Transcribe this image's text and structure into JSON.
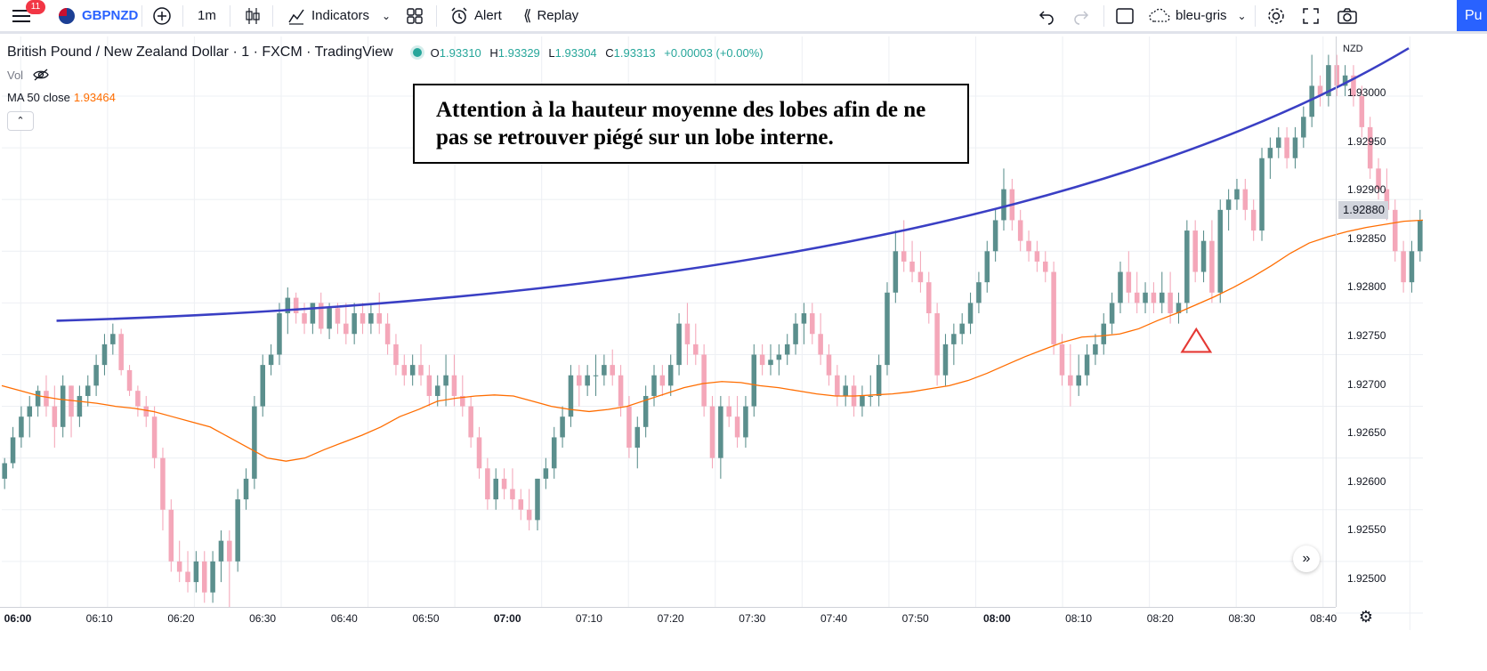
{
  "toolbar": {
    "notification_count": "11",
    "symbol": "GBPNZD",
    "interval": "1m",
    "indicators_label": "Indicators",
    "alert_label": "Alert",
    "replay_label": "Replay",
    "layout_name": "bleu-gris",
    "publish_label": "Pu"
  },
  "legend": {
    "title": "British Pound / New Zealand Dollar · 1 · FXCM · TradingView",
    "open_label": "O",
    "open": "1.93310",
    "high_label": "H",
    "high": "1.93329",
    "low_label": "L",
    "low": "1.93304",
    "close_label": "C",
    "close": "1.93313",
    "change": "+0.00003 (+0.00%)",
    "vol_label": "Vol",
    "ma_label": "MA 50 close",
    "ma_value": "1.93464"
  },
  "annotation": {
    "line1": "Attention à la hauteur moyenne des lobes afin de ne",
    "line2": "pas se retrouver piégé sur un lobe interne."
  },
  "price_axis": {
    "currency": "NZD",
    "current_price": "1.92880",
    "ticks": [
      "1.93000",
      "1.92950",
      "1.92900",
      "1.92850",
      "1.92800",
      "1.92750",
      "1.92700",
      "1.92650",
      "1.92600",
      "1.92550",
      "1.92500"
    ]
  },
  "time_axis": {
    "ticks": [
      {
        "label": "06:00",
        "bold": true
      },
      {
        "label": "06:10",
        "bold": false
      },
      {
        "label": "06:20",
        "bold": false
      },
      {
        "label": "06:30",
        "bold": false
      },
      {
        "label": "06:40",
        "bold": false
      },
      {
        "label": "06:50",
        "bold": false
      },
      {
        "label": "07:00",
        "bold": true
      },
      {
        "label": "07:10",
        "bold": false
      },
      {
        "label": "07:20",
        "bold": false
      },
      {
        "label": "07:30",
        "bold": false
      },
      {
        "label": "07:40",
        "bold": false
      },
      {
        "label": "07:50",
        "bold": false
      },
      {
        "label": "08:00",
        "bold": true
      },
      {
        "label": "08:10",
        "bold": false
      },
      {
        "label": "08:20",
        "bold": false
      },
      {
        "label": "08:30",
        "bold": false
      },
      {
        "label": "08:40",
        "bold": false
      }
    ]
  },
  "colors": {
    "up": "#5b8f8d",
    "down": "#f4a7b9",
    "ma": "#ff6d00",
    "trendline": "#3a3fc4",
    "marker": "#e53935"
  },
  "chart_data": {
    "type": "candlestick",
    "ylim": [
      1.9248,
      1.9308
    ],
    "candles_ohlc": [
      [
        1.9263,
        1.9265,
        1.9262,
        1.92645
      ],
      [
        1.92645,
        1.9268,
        1.9264,
        1.9267
      ],
      [
        1.9267,
        1.927,
        1.9266,
        1.9269
      ],
      [
        1.9269,
        1.9271,
        1.9267,
        1.927
      ],
      [
        1.927,
        1.9272,
        1.9269,
        1.92715
      ],
      [
        1.92715,
        1.9273,
        1.9269,
        1.927
      ],
      [
        1.927,
        1.9272,
        1.9266,
        1.9268
      ],
      [
        1.9268,
        1.9273,
        1.9267,
        1.9272
      ],
      [
        1.9272,
        1.9272,
        1.9267,
        1.9269
      ],
      [
        1.9269,
        1.9272,
        1.9268,
        1.9271
      ],
      [
        1.9271,
        1.9273,
        1.927,
        1.9272
      ],
      [
        1.9272,
        1.9275,
        1.9271,
        1.9274
      ],
      [
        1.9274,
        1.9277,
        1.9273,
        1.9276
      ],
      [
        1.9276,
        1.9278,
        1.9275,
        1.9277
      ],
      [
        1.9277,
        1.92775,
        1.9273,
        1.92735
      ],
      [
        1.92735,
        1.9274,
        1.9271,
        1.92715
      ],
      [
        1.92715,
        1.9272,
        1.9269,
        1.927
      ],
      [
        1.927,
        1.9271,
        1.9268,
        1.9269
      ],
      [
        1.9269,
        1.927,
        1.9264,
        1.9265
      ],
      [
        1.9265,
        1.9266,
        1.9258,
        1.926
      ],
      [
        1.926,
        1.9261,
        1.9254,
        1.9255
      ],
      [
        1.9255,
        1.9257,
        1.9253,
        1.9254
      ],
      [
        1.9254,
        1.9256,
        1.9252,
        1.9253
      ],
      [
        1.9253,
        1.9256,
        1.9252,
        1.9255
      ],
      [
        1.9255,
        1.9256,
        1.9251,
        1.9252
      ],
      [
        1.9252,
        1.9256,
        1.9251,
        1.9255
      ],
      [
        1.9255,
        1.9258,
        1.9253,
        1.9257
      ],
      [
        1.9257,
        1.9258,
        1.9248,
        1.9255
      ],
      [
        1.9255,
        1.9262,
        1.9254,
        1.9261
      ],
      [
        1.9261,
        1.9264,
        1.926,
        1.9263
      ],
      [
        1.9263,
        1.9271,
        1.9262,
        1.927
      ],
      [
        1.927,
        1.9275,
        1.9269,
        1.9274
      ],
      [
        1.9274,
        1.9276,
        1.9273,
        1.9275
      ],
      [
        1.9275,
        1.928,
        1.9274,
        1.9279
      ],
      [
        1.9279,
        1.92815,
        1.9277,
        1.92805
      ],
      [
        1.92805,
        1.9281,
        1.9278,
        1.9279
      ],
      [
        1.9279,
        1.928,
        1.9277,
        1.9278
      ],
      [
        1.9278,
        1.928,
        1.9277,
        1.928
      ],
      [
        1.928,
        1.9281,
        1.9277,
        1.92775
      ],
      [
        1.92775,
        1.928,
        1.92765,
        1.92795
      ],
      [
        1.92795,
        1.928,
        1.9277,
        1.9278
      ],
      [
        1.9278,
        1.928,
        1.9276,
        1.9277
      ],
      [
        1.9277,
        1.928,
        1.9276,
        1.9279
      ],
      [
        1.9279,
        1.928,
        1.9277,
        1.9278
      ],
      [
        1.9278,
        1.928,
        1.9277,
        1.9279
      ],
      [
        1.9279,
        1.9281,
        1.9277,
        1.9278
      ],
      [
        1.9278,
        1.9279,
        1.9275,
        1.9276
      ],
      [
        1.9276,
        1.9277,
        1.9273,
        1.9274
      ],
      [
        1.9274,
        1.9275,
        1.9272,
        1.9273
      ],
      [
        1.9273,
        1.9275,
        1.9272,
        1.9274
      ],
      [
        1.9274,
        1.9276,
        1.9272,
        1.9273
      ],
      [
        1.9273,
        1.9274,
        1.927,
        1.9271
      ],
      [
        1.9271,
        1.9273,
        1.927,
        1.9272
      ],
      [
        1.9272,
        1.9275,
        1.927,
        1.9273
      ],
      [
        1.9273,
        1.9275,
        1.927,
        1.9271
      ],
      [
        1.9271,
        1.9273,
        1.9269,
        1.927
      ],
      [
        1.927,
        1.9271,
        1.9266,
        1.9267
      ],
      [
        1.9267,
        1.9268,
        1.9263,
        1.9264
      ],
      [
        1.9264,
        1.9265,
        1.926,
        1.9261
      ],
      [
        1.9261,
        1.9264,
        1.926,
        1.9263
      ],
      [
        1.9263,
        1.9264,
        1.9261,
        1.9262
      ],
      [
        1.9262,
        1.9264,
        1.926,
        1.9261
      ],
      [
        1.9261,
        1.9262,
        1.9259,
        1.926
      ],
      [
        1.926,
        1.9262,
        1.9258,
        1.9259
      ],
      [
        1.9259,
        1.9263,
        1.9258,
        1.9263
      ],
      [
        1.9263,
        1.9265,
        1.9262,
        1.9264
      ],
      [
        1.9264,
        1.9268,
        1.9263,
        1.9267
      ],
      [
        1.9267,
        1.927,
        1.9266,
        1.9269
      ],
      [
        1.9269,
        1.9274,
        1.9268,
        1.9273
      ],
      [
        1.9273,
        1.9274,
        1.927,
        1.9272
      ],
      [
        1.9272,
        1.9274,
        1.9271,
        1.9273
      ],
      [
        1.9273,
        1.9275,
        1.9271,
        1.9273
      ],
      [
        1.9273,
        1.9275,
        1.9272,
        1.9274
      ],
      [
        1.9274,
        1.92755,
        1.9272,
        1.9273
      ],
      [
        1.9273,
        1.9274,
        1.9269,
        1.927
      ],
      [
        1.927,
        1.9271,
        1.9265,
        1.9266
      ],
      [
        1.9266,
        1.9269,
        1.9264,
        1.9268
      ],
      [
        1.9268,
        1.9272,
        1.9267,
        1.9271
      ],
      [
        1.9271,
        1.9274,
        1.927,
        1.9273
      ],
      [
        1.9273,
        1.9274,
        1.9271,
        1.9272
      ],
      [
        1.9272,
        1.9275,
        1.9271,
        1.9274
      ],
      [
        1.9274,
        1.9279,
        1.9273,
        1.9278
      ],
      [
        1.9278,
        1.928,
        1.9274,
        1.9276
      ],
      [
        1.9276,
        1.9278,
        1.9274,
        1.9275
      ],
      [
        1.9275,
        1.9276,
        1.9269,
        1.927
      ],
      [
        1.927,
        1.9271,
        1.9264,
        1.9265
      ],
      [
        1.9265,
        1.9271,
        1.9263,
        1.927
      ],
      [
        1.927,
        1.9271,
        1.9268,
        1.9269
      ],
      [
        1.9269,
        1.9271,
        1.9266,
        1.9267
      ],
      [
        1.9267,
        1.9271,
        1.9266,
        1.927
      ],
      [
        1.927,
        1.9276,
        1.9269,
        1.9275
      ],
      [
        1.9275,
        1.9276,
        1.9273,
        1.9274
      ],
      [
        1.9274,
        1.9276,
        1.9273,
        1.92745
      ],
      [
        1.92745,
        1.9276,
        1.9273,
        1.9275
      ],
      [
        1.9275,
        1.9277,
        1.9274,
        1.9276
      ],
      [
        1.9276,
        1.9279,
        1.9275,
        1.9278
      ],
      [
        1.9278,
        1.928,
        1.9276,
        1.9279
      ],
      [
        1.9279,
        1.928,
        1.9276,
        1.9277
      ],
      [
        1.9277,
        1.9279,
        1.9274,
        1.9275
      ],
      [
        1.9275,
        1.9276,
        1.9272,
        1.9273
      ],
      [
        1.9273,
        1.9274,
        1.927,
        1.9271
      ],
      [
        1.9271,
        1.9273,
        1.927,
        1.9272
      ],
      [
        1.9272,
        1.9273,
        1.9269,
        1.927
      ],
      [
        1.927,
        1.9272,
        1.9269,
        1.9271
      ],
      [
        1.9271,
        1.9273,
        1.927,
        1.9271
      ],
      [
        1.9271,
        1.9275,
        1.927,
        1.9274
      ],
      [
        1.9274,
        1.9282,
        1.9273,
        1.9281
      ],
      [
        1.9281,
        1.9287,
        1.928,
        1.9285
      ],
      [
        1.9285,
        1.9288,
        1.9283,
        1.9284
      ],
      [
        1.9284,
        1.9286,
        1.9282,
        1.9283
      ],
      [
        1.9283,
        1.9285,
        1.9281,
        1.9282
      ],
      [
        1.9282,
        1.9283,
        1.9278,
        1.9279
      ],
      [
        1.9279,
        1.928,
        1.9272,
        1.9273
      ],
      [
        1.9273,
        1.9277,
        1.9272,
        1.9276
      ],
      [
        1.9276,
        1.9278,
        1.9274,
        1.9277
      ],
      [
        1.9277,
        1.9279,
        1.9276,
        1.9278
      ],
      [
        1.9278,
        1.9281,
        1.9277,
        1.928
      ],
      [
        1.928,
        1.9283,
        1.9279,
        1.9282
      ],
      [
        1.9282,
        1.9286,
        1.9281,
        1.9285
      ],
      [
        1.9285,
        1.9289,
        1.9284,
        1.9288
      ],
      [
        1.9288,
        1.9293,
        1.9287,
        1.9291
      ],
      [
        1.9291,
        1.9292,
        1.9287,
        1.9288
      ],
      [
        1.9288,
        1.9289,
        1.9285,
        1.9286
      ],
      [
        1.9286,
        1.9287,
        1.9284,
        1.9285
      ],
      [
        1.9285,
        1.9286,
        1.9283,
        1.9284
      ],
      [
        1.9284,
        1.9285,
        1.9282,
        1.9283
      ],
      [
        1.9283,
        1.9284,
        1.9275,
        1.9276
      ],
      [
        1.9276,
        1.9277,
        1.9272,
        1.9273
      ],
      [
        1.9273,
        1.9276,
        1.927,
        1.9272
      ],
      [
        1.9272,
        1.9275,
        1.9271,
        1.9273
      ],
      [
        1.9273,
        1.9276,
        1.9272,
        1.9275
      ],
      [
        1.9275,
        1.9277,
        1.9274,
        1.9276
      ],
      [
        1.9276,
        1.9279,
        1.9275,
        1.9278
      ],
      [
        1.9278,
        1.9281,
        1.9277,
        1.928
      ],
      [
        1.928,
        1.9284,
        1.9279,
        1.9283
      ],
      [
        1.9283,
        1.9285,
        1.928,
        1.9281
      ],
      [
        1.9281,
        1.9283,
        1.9279,
        1.928
      ],
      [
        1.928,
        1.9282,
        1.9279,
        1.9281
      ],
      [
        1.9281,
        1.9282,
        1.9279,
        1.928
      ],
      [
        1.928,
        1.9283,
        1.9279,
        1.9281
      ],
      [
        1.9281,
        1.9283,
        1.9278,
        1.9279
      ],
      [
        1.9279,
        1.9281,
        1.9278,
        1.928
      ],
      [
        1.928,
        1.9288,
        1.9279,
        1.9287
      ],
      [
        1.9287,
        1.9288,
        1.9282,
        1.9283
      ],
      [
        1.9283,
        1.9287,
        1.9282,
        1.9286
      ],
      [
        1.9286,
        1.9288,
        1.928,
        1.9281
      ],
      [
        1.9281,
        1.929,
        1.928,
        1.9289
      ],
      [
        1.9289,
        1.9291,
        1.9287,
        1.929
      ],
      [
        1.929,
        1.9292,
        1.9289,
        1.9291
      ],
      [
        1.9291,
        1.9292,
        1.9288,
        1.9289
      ],
      [
        1.9289,
        1.929,
        1.9286,
        1.9287
      ],
      [
        1.9287,
        1.9295,
        1.9286,
        1.9294
      ],
      [
        1.9294,
        1.9296,
        1.9292,
        1.9295
      ],
      [
        1.9295,
        1.9297,
        1.9294,
        1.9296
      ],
      [
        1.9296,
        1.9297,
        1.9293,
        1.9294
      ],
      [
        1.9294,
        1.9297,
        1.9293,
        1.9296
      ],
      [
        1.9296,
        1.9299,
        1.9295,
        1.9298
      ],
      [
        1.9298,
        1.9304,
        1.9297,
        1.9301
      ],
      [
        1.9301,
        1.9302,
        1.9299,
        1.93
      ],
      [
        1.93,
        1.9304,
        1.9299,
        1.9303
      ],
      [
        1.9303,
        1.9304,
        1.93,
        1.9301
      ],
      [
        1.9301,
        1.9303,
        1.93,
        1.9302
      ],
      [
        1.9302,
        1.9303,
        1.9299,
        1.93
      ],
      [
        1.93,
        1.9301,
        1.9296,
        1.9297
      ],
      [
        1.9297,
        1.9298,
        1.9292,
        1.9293
      ],
      [
        1.9293,
        1.9294,
        1.929,
        1.9291
      ],
      [
        1.9291,
        1.9293,
        1.9288,
        1.9289
      ],
      [
        1.9289,
        1.929,
        1.9284,
        1.9285
      ],
      [
        1.9285,
        1.9286,
        1.9281,
        1.9282
      ],
      [
        1.9282,
        1.9286,
        1.9281,
        1.9285
      ],
      [
        1.9285,
        1.9289,
        1.9284,
        1.9288
      ]
    ],
    "ma50": [
      1.9272,
      1.92715,
      1.9271,
      1.92707,
      1.92705,
      1.92703,
      1.927,
      1.92698,
      1.92695,
      1.9269,
      1.92685,
      1.9268,
      1.9267,
      1.9266,
      1.9265,
      1.92647,
      1.9265,
      1.92658,
      1.92665,
      1.92672,
      1.9268,
      1.9269,
      1.92697,
      1.92705,
      1.92708,
      1.9271,
      1.92711,
      1.9271,
      1.92705,
      1.927,
      1.92697,
      1.92695,
      1.92697,
      1.927,
      1.92706,
      1.92712,
      1.92718,
      1.92722,
      1.92724,
      1.92723,
      1.9272,
      1.92718,
      1.92715,
      1.92712,
      1.9271,
      1.9271,
      1.92711,
      1.92712,
      1.92714,
      1.92717,
      1.9272,
      1.92725,
      1.92732,
      1.9274,
      1.92748,
      1.92755,
      1.92762,
      1.92767,
      1.92768,
      1.9277,
      1.92775,
      1.92783,
      1.9279,
      1.92798,
      1.92806,
      1.92815,
      1.92825,
      1.92836,
      1.92848,
      1.92858,
      1.92864,
      1.92869,
      1.92873,
      1.92876,
      1.92879,
      1.9288
    ],
    "trendline": {
      "x_start_time": "06:05",
      "y_start": 1.9278,
      "x_end_time": "08:39",
      "y_end": 1.9305
    },
    "triangle_marker": {
      "time": "08:13",
      "price": 1.9276
    }
  }
}
